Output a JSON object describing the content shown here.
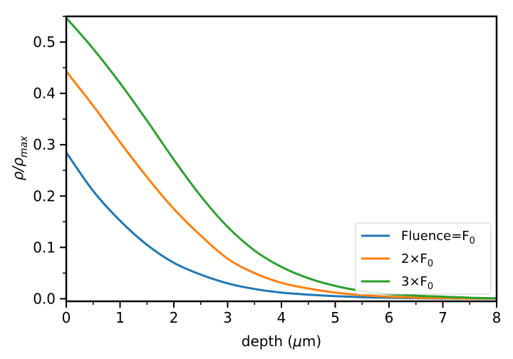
{
  "chart_data": {
    "type": "line",
    "xlabel": {
      "text": "depth (",
      "italic": "μ",
      "suffix": "m)"
    },
    "ylabel": {
      "main": "ρ/ρ",
      "sub": "max"
    },
    "xlim": [
      0,
      8
    ],
    "ylim": [
      -0.005,
      0.55
    ],
    "x_ticks": [
      0,
      1,
      2,
      3,
      4,
      5,
      6,
      7,
      8
    ],
    "x_tick_labels": [
      "0",
      "1",
      "2",
      "3",
      "4",
      "5",
      "6",
      "7",
      "8"
    ],
    "y_ticks": [
      0.0,
      0.1,
      0.2,
      0.3,
      0.4,
      0.5
    ],
    "y_tick_labels": [
      "0.0",
      "0.1",
      "0.2",
      "0.3",
      "0.4",
      "0.5"
    ],
    "grid": false,
    "legend_position": "lower-right",
    "x": [
      0,
      0.5,
      1,
      1.5,
      2,
      2.5,
      3,
      3.5,
      4,
      4.5,
      5,
      5.5,
      6,
      6.5,
      7,
      7.5,
      8
    ],
    "series": [
      {
        "name": {
          "base": "Fluence=F",
          "sub": "0"
        },
        "color": "#1f77b4",
        "values": [
          0.285,
          0.21,
          0.152,
          0.105,
          0.07,
          0.047,
          0.03,
          0.019,
          0.012,
          0.008,
          0.005,
          0.003,
          0.002,
          0.001,
          0.0006,
          0.0003,
          0.0002
        ]
      },
      {
        "name": {
          "base": "2×F",
          "sub": "0"
        },
        "color": "#ff7f0e",
        "values": [
          0.443,
          0.376,
          0.305,
          0.237,
          0.175,
          0.123,
          0.078,
          0.05,
          0.031,
          0.02,
          0.012,
          0.007,
          0.004,
          0.002,
          0.0012,
          0.0006,
          0.0003
        ]
      },
      {
        "name": {
          "base": "3×F",
          "sub": "0"
        },
        "color": "#2ca02c",
        "values": [
          0.547,
          0.487,
          0.42,
          0.347,
          0.271,
          0.2,
          0.14,
          0.094,
          0.062,
          0.04,
          0.025,
          0.015,
          0.009,
          0.006,
          0.004,
          0.002,
          0.001
        ]
      }
    ]
  }
}
